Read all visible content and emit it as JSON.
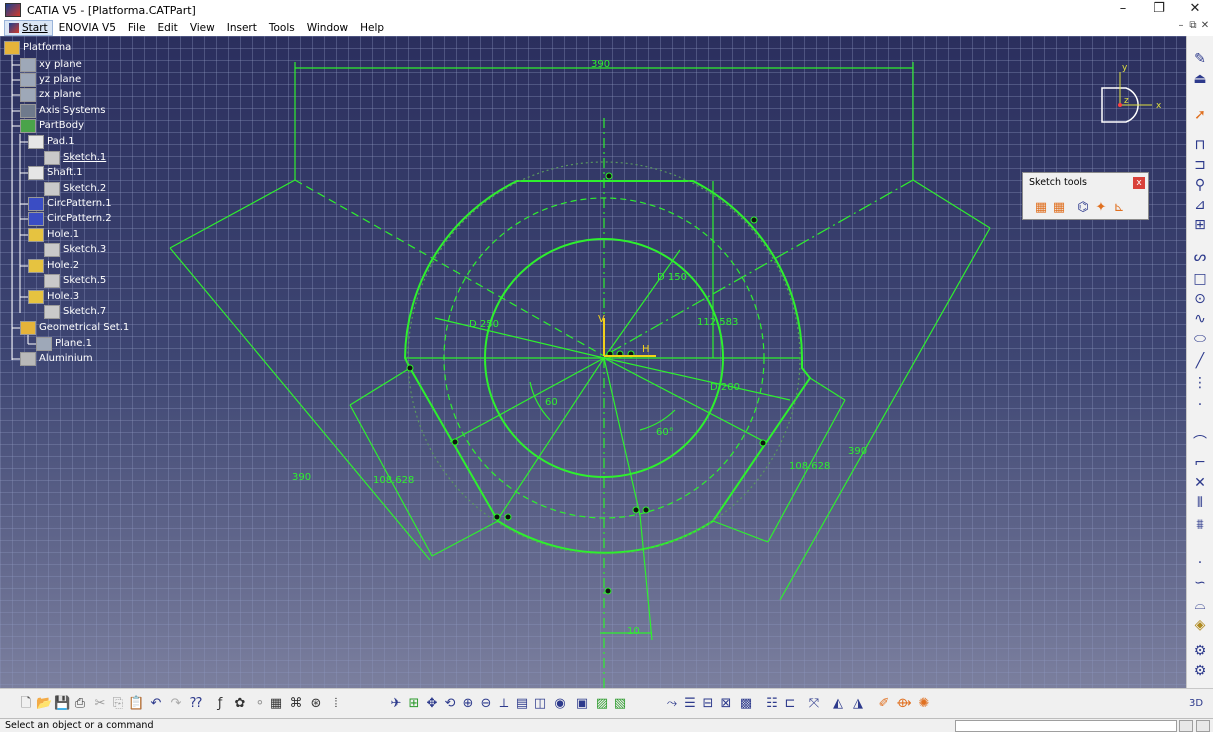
{
  "window": {
    "title": "CATIA V5 - [Platforma.CATPart]",
    "controls": [
      "–",
      "❐",
      "✕"
    ],
    "mdi_controls": [
      "–",
      "⧉",
      "✕"
    ]
  },
  "menu": {
    "start": "Start",
    "items": [
      "ENOVIA V5",
      "File",
      "Edit",
      "View",
      "Insert",
      "Tools",
      "Window",
      "Help"
    ]
  },
  "tree": {
    "items": [
      {
        "label": "Platforma",
        "icon": "part-icon"
      },
      {
        "label": "xy plane",
        "icon": "plane-icon"
      },
      {
        "label": "yz plane",
        "icon": "plane-icon"
      },
      {
        "label": "zx plane",
        "icon": "plane-icon"
      },
      {
        "label": "Axis Systems",
        "icon": "axis-systems-icon"
      },
      {
        "label": "PartBody",
        "icon": "partbody-icon"
      },
      {
        "label": "Pad.1",
        "icon": "pad-icon"
      },
      {
        "label": "Sketch.1",
        "icon": "sketch-icon"
      },
      {
        "label": "Shaft.1",
        "icon": "shaft-icon"
      },
      {
        "label": "Sketch.2",
        "icon": "sketch-icon"
      },
      {
        "label": "CircPattern.1",
        "icon": "circpattern-icon"
      },
      {
        "label": "CircPattern.2",
        "icon": "circpattern-icon"
      },
      {
        "label": "Hole.1",
        "icon": "hole-icon"
      },
      {
        "label": "Sketch.3",
        "icon": "sketch-icon"
      },
      {
        "label": "Hole.2",
        "icon": "hole-icon"
      },
      {
        "label": "Sketch.5",
        "icon": "sketch-icon"
      },
      {
        "label": "Hole.3",
        "icon": "hole-icon"
      },
      {
        "label": "Sketch.7",
        "icon": "sketch-icon"
      },
      {
        "label": "Geometrical Set.1",
        "icon": "geometrical-set-icon"
      },
      {
        "label": "Plane.1",
        "icon": "plane-icon"
      },
      {
        "label": "Aluminium",
        "icon": "material-icon"
      }
    ],
    "selected": "Sketch.1"
  },
  "sketch_tools": {
    "title": "Sketch tools",
    "close": "x"
  },
  "dimensions": {
    "top_width": "390",
    "d150": "D 150",
    "d250": "D 250",
    "d200": "D 200",
    "h112": "112.583",
    "angle1": "60",
    "angle2": "60°",
    "left_width": "108.628",
    "right_width": "108.628",
    "left_long": "390",
    "right_long": "390",
    "bottom": "10"
  },
  "compass": {
    "x": "x",
    "y": "y",
    "z": "z"
  },
  "status": {
    "message": "Select an object or a command"
  },
  "colors": {
    "geometry": "#2ef02e",
    "background_top": "#2b2f5e",
    "background_bottom": "#7b7f9e"
  }
}
